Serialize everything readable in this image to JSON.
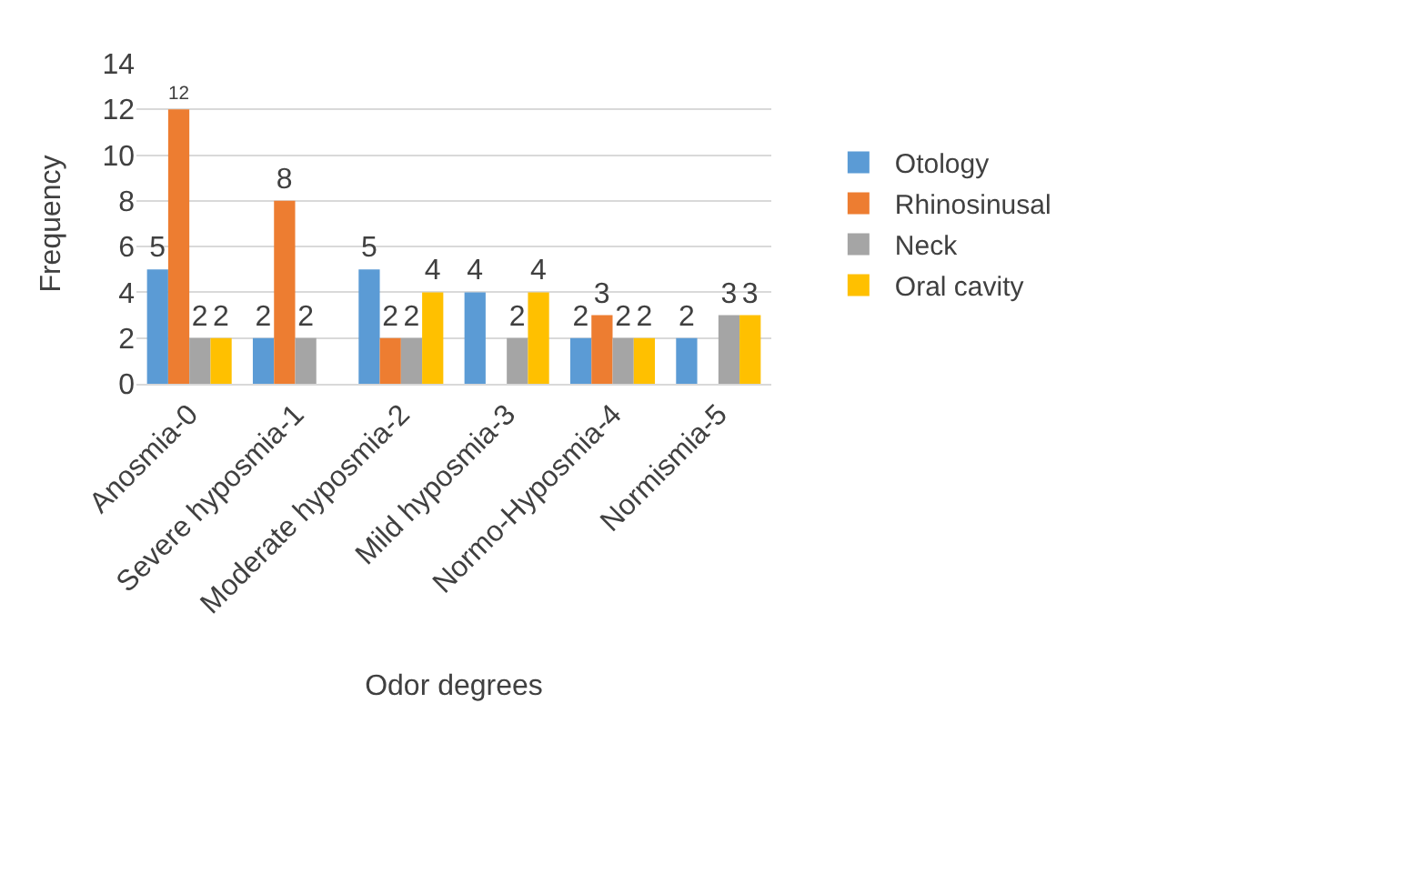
{
  "chart_data": {
    "type": "bar",
    "xlabel": "Odor degrees",
    "ylabel": "Frequency",
    "categories": [
      "Anosmia-0",
      "Severe hyposmia-1",
      "Moderate hyposmia-2",
      "Mild hyposmia-3",
      "Normo-Hyposmia-4",
      "Normismia-5"
    ],
    "series": [
      {
        "name": "Otology",
        "color": "#5b9bd5",
        "values": [
          5,
          2,
          5,
          4,
          2,
          2
        ]
      },
      {
        "name": "Rhinosinusal",
        "color": "#ed7d31",
        "values": [
          12,
          8,
          2,
          null,
          3,
          null
        ]
      },
      {
        "name": "Neck",
        "color": "#a5a5a5",
        "values": [
          2,
          2,
          2,
          2,
          2,
          3
        ]
      },
      {
        "name": "Oral cavity",
        "color": "#ffc000",
        "values": [
          2,
          null,
          4,
          4,
          2,
          3
        ]
      }
    ],
    "ylim": [
      0,
      14
    ],
    "yticks": [
      0,
      2,
      4,
      6,
      8,
      10,
      12,
      14
    ],
    "grid": "y",
    "legend": "right",
    "data_labels": true
  }
}
